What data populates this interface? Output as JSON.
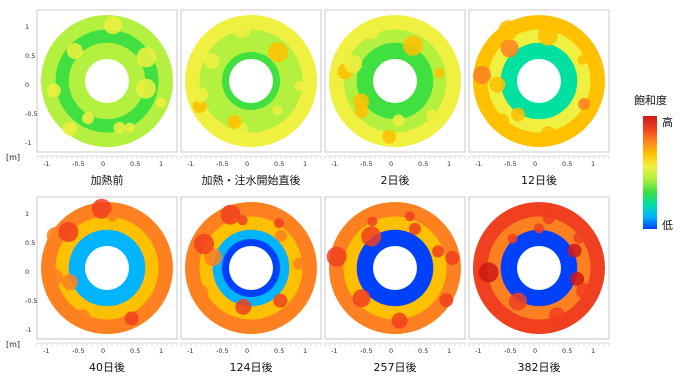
{
  "chart_data": {
    "type": "heatmap",
    "legend": {
      "title": "飽和度",
      "high": "高",
      "low": "低",
      "placement": "right"
    },
    "colorscale": [
      "#0040ff",
      "#00b4ff",
      "#00e0a0",
      "#40e040",
      "#b4f040",
      "#f0f040",
      "#ffc000",
      "#ff8020",
      "#f04020",
      "#d01818"
    ],
    "unit_label": "[m]",
    "axes": {
      "y_ticks": [
        "1",
        "0.5",
        "0",
        "-0.5",
        "-1"
      ],
      "x_ticks": [
        "-1",
        "-0.5",
        "0",
        "0.5",
        "1"
      ],
      "xlim": [
        -1.2,
        1.2
      ],
      "ylim": [
        -1.2,
        1.2
      ]
    },
    "panels": [
      {
        "label": "加熱前",
        "saturation_level": 0.38
      },
      {
        "label": "加熱・注水開始直後",
        "saturation_level": 0.42
      },
      {
        "label": "2日後",
        "saturation_level": 0.46
      },
      {
        "label": "12日後",
        "saturation_level": 0.55
      },
      {
        "label": "40日後",
        "saturation_level": 0.64
      },
      {
        "label": "124日後",
        "saturation_level": 0.68
      },
      {
        "label": "257日後",
        "saturation_level": 0.72
      },
      {
        "label": "382日後",
        "saturation_level": 0.74
      }
    ]
  }
}
